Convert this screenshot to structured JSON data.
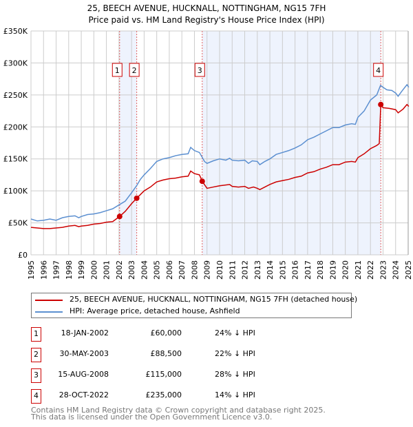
{
  "chart_data": {
    "type": "line",
    "title": "25, BEECH AVENUE, HUCKNALL, NOTTINGHAM, NG15 7FH",
    "subtitle": "Price paid vs. HM Land Registry's House Price Index (HPI)",
    "xlim": [
      1995,
      2025
    ],
    "ylim": [
      0,
      350000
    ],
    "yticks": [
      "£0",
      "£50K",
      "£100K",
      "£150K",
      "£200K",
      "£250K",
      "£300K",
      "£350K"
    ],
    "ytick_values": [
      0,
      50000,
      100000,
      150000,
      200000,
      250000,
      300000,
      350000
    ],
    "xticks": [
      "1995",
      "1996",
      "1997",
      "1998",
      "1999",
      "2000",
      "2001",
      "2002",
      "2003",
      "2004",
      "2005",
      "2006",
      "2007",
      "2008",
      "2009",
      "2010",
      "2011",
      "2012",
      "2013",
      "2014",
      "2015",
      "2016",
      "2017",
      "2018",
      "2019",
      "2020",
      "2021",
      "2022",
      "2023",
      "2024",
      "2025"
    ],
    "grid": true,
    "series": [
      {
        "name": "25, BEECH AVENUE, HUCKNALL, NOTTINGHAM, NG15 7FH (detached house)",
        "color": "#cc0000",
        "x": [
          1995,
          1995.5,
          1996,
          1996.5,
          1997,
          1997.5,
          1998,
          1998.5,
          1998.8,
          1999,
          1999.5,
          2000,
          2000.5,
          2001,
          2001.5,
          2002.05,
          2002.5,
          2003,
          2003.41,
          2004,
          2004.5,
          2005,
          2005.5,
          2006,
          2006.5,
          2007,
          2007.5,
          2007.7,
          2008,
          2008.4,
          2008.62,
          2009,
          2009.5,
          2010,
          2010.8,
          2011,
          2011.5,
          2012,
          2012.3,
          2012.7,
          2013,
          2013.2,
          2013.6,
          2014,
          2014.5,
          2015,
          2015.5,
          2016,
          2016.5,
          2017,
          2017.5,
          2018,
          2018.5,
          2019,
          2019.5,
          2020,
          2020.5,
          2020.8,
          2021,
          2021.5,
          2022,
          2022.5,
          2022.7,
          2022.82,
          2023,
          2023.5,
          2024,
          2024.2,
          2024.6,
          2024.9,
          2025.05
        ],
        "y": [
          43,
          42,
          41,
          41,
          42,
          43,
          45,
          46,
          44,
          45,
          46,
          48,
          49,
          51,
          52,
          60,
          68,
          80,
          88.5,
          100,
          106,
          114,
          117,
          119,
          120,
          122,
          123,
          131,
          127,
          125,
          115,
          104,
          106,
          108,
          110,
          107,
          106,
          107,
          104,
          106,
          104,
          102,
          106,
          110,
          114,
          116,
          118,
          121,
          123,
          128,
          130,
          134,
          137,
          141,
          141,
          145,
          146,
          145,
          152,
          158,
          166,
          171,
          174,
          235,
          230,
          229,
          227,
          222,
          228,
          235,
          232
        ]
      },
      {
        "name": "HPI: Average price, detached house, Ashfield",
        "color": "#5b8fd0",
        "x": [
          1995,
          1995.5,
          1996,
          1996.5,
          1997,
          1997.5,
          1998,
          1998.5,
          1998.8,
          1999,
          1999.5,
          2000,
          2000.5,
          2001,
          2001.5,
          2002,
          2002.5,
          2003,
          2003.4,
          2003.7,
          2004,
          2004.5,
          2005,
          2005.5,
          2006,
          2006.5,
          2007,
          2007.5,
          2007.7,
          2008,
          2008.4,
          2008.8,
          2009,
          2009.5,
          2010,
          2010.5,
          2010.8,
          2011,
          2011.5,
          2012,
          2012.3,
          2012.6,
          2013,
          2013.2,
          2013.6,
          2014,
          2014.5,
          2015,
          2015.5,
          2016,
          2016.5,
          2017,
          2017.5,
          2018,
          2018.5,
          2019,
          2019.5,
          2020,
          2020.5,
          2020.8,
          2021,
          2021.5,
          2022,
          2022.5,
          2022.8,
          2023,
          2023.3,
          2023.7,
          2024,
          2024.2,
          2024.5,
          2024.9,
          2025.05
        ],
        "y": [
          56,
          53,
          54,
          56,
          54,
          58,
          60,
          61,
          58,
          60,
          63,
          64,
          66,
          69,
          72,
          78,
          84,
          97,
          108,
          118,
          125,
          135,
          146,
          150,
          152,
          155,
          157,
          158,
          168,
          163,
          160,
          146,
          143,
          147,
          150,
          148,
          151,
          148,
          147,
          148,
          143,
          147,
          146,
          141,
          146,
          150,
          157,
          160,
          163,
          167,
          172,
          180,
          184,
          189,
          194,
          199,
          199,
          203,
          205,
          204,
          215,
          225,
          242,
          250,
          265,
          262,
          258,
          257,
          253,
          248,
          256,
          266,
          262
        ]
      }
    ],
    "transactions": [
      {
        "id": "1",
        "x": 2002.05,
        "price": 60
      },
      {
        "id": "2",
        "x": 2003.41,
        "price": 88.5
      },
      {
        "id": "3",
        "x": 2008.62,
        "price": 115
      },
      {
        "id": "4",
        "x": 2022.82,
        "price": 235
      }
    ],
    "shaded_ranges": [
      [
        2002.05,
        2003.41
      ],
      [
        2008.62,
        2022.82
      ]
    ]
  },
  "legend": {
    "red": "25, BEECH AVENUE, HUCKNALL, NOTTINGHAM, NG15 7FH (detached house)",
    "blue": "HPI: Average price, detached house, Ashfield"
  },
  "table": [
    {
      "num": "1",
      "date": "18-JAN-2002",
      "price": "£60,000",
      "delta": "24% ↓ HPI"
    },
    {
      "num": "2",
      "date": "30-MAY-2003",
      "price": "£88,500",
      "delta": "22% ↓ HPI"
    },
    {
      "num": "3",
      "date": "15-AUG-2008",
      "price": "£115,000",
      "delta": "28% ↓ HPI"
    },
    {
      "num": "4",
      "date": "28-OCT-2022",
      "price": "£235,000",
      "delta": "14% ↓ HPI"
    }
  ],
  "footer": {
    "line1": "Contains HM Land Registry data © Crown copyright and database right 2025.",
    "line2": "This data is licensed under the Open Government Licence v3.0."
  }
}
